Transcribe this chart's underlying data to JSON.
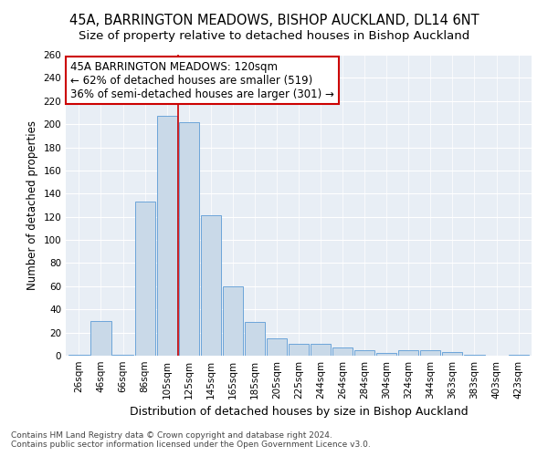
{
  "title1": "45A, BARRINGTON MEADOWS, BISHOP AUCKLAND, DL14 6NT",
  "title2": "Size of property relative to detached houses in Bishop Auckland",
  "xlabel": "Distribution of detached houses by size in Bishop Auckland",
  "ylabel": "Number of detached properties",
  "footnote1": "Contains HM Land Registry data © Crown copyright and database right 2024.",
  "footnote2": "Contains public sector information licensed under the Open Government Licence v3.0.",
  "annotation_line1": "45A BARRINGTON MEADOWS: 120sqm",
  "annotation_line2": "← 62% of detached houses are smaller (519)",
  "annotation_line3": "36% of semi-detached houses are larger (301) →",
  "bar_labels": [
    "26sqm",
    "46sqm",
    "66sqm",
    "86sqm",
    "105sqm",
    "125sqm",
    "145sqm",
    "165sqm",
    "185sqm",
    "205sqm",
    "225sqm",
    "244sqm",
    "264sqm",
    "284sqm",
    "304sqm",
    "324sqm",
    "344sqm",
    "363sqm",
    "383sqm",
    "403sqm",
    "423sqm"
  ],
  "bar_values": [
    1,
    30,
    1,
    133,
    207,
    202,
    121,
    60,
    29,
    15,
    10,
    10,
    7,
    5,
    2,
    5,
    5,
    3,
    1,
    0,
    1
  ],
  "bar_color": "#c9d9e8",
  "bar_edge_color": "#5b9bd5",
  "red_line_index": 4.5,
  "ylim": [
    0,
    260
  ],
  "yticks": [
    0,
    20,
    40,
    60,
    80,
    100,
    120,
    140,
    160,
    180,
    200,
    220,
    240,
    260
  ],
  "annotation_box_color": "#ffffff",
  "annotation_box_edge": "#cc0000",
  "red_line_color": "#cc0000",
  "fig_bg_color": "#ffffff",
  "ax_bg_color": "#e8eef5",
  "grid_color": "#ffffff",
  "title1_fontsize": 10.5,
  "title2_fontsize": 9.5,
  "xlabel_fontsize": 9,
  "ylabel_fontsize": 8.5,
  "tick_fontsize": 7.5,
  "annotation_fontsize": 8.5,
  "footnote_fontsize": 6.5
}
